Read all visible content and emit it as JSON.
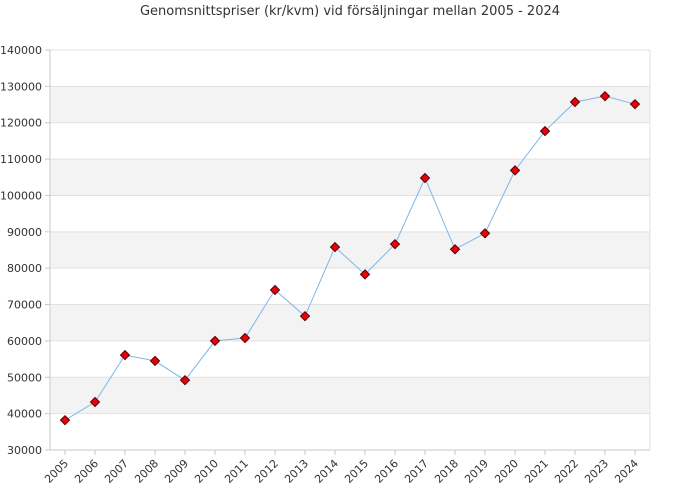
{
  "chart_data": {
    "type": "line",
    "title": "Genomsnittspriser (kr/kvm) vid försäljningar mellan 2005 - 2024",
    "xlabel": "",
    "ylabel": "",
    "categories": [
      "2005",
      "2006",
      "2007",
      "2008",
      "2009",
      "2010",
      "2011",
      "2012",
      "2013",
      "2014",
      "2015",
      "2016",
      "2017",
      "2018",
      "2019",
      "2020",
      "2021",
      "2022",
      "2023",
      "2024"
    ],
    "series": [
      {
        "values": [
          38200,
          43200,
          56100,
          54500,
          49200,
          60000,
          60800,
          74000,
          66800,
          85800,
          78300,
          86600,
          104800,
          85200,
          89600,
          106900,
          117700,
          125700,
          127300,
          125100
        ]
      }
    ],
    "ylim": [
      30000,
      140000
    ],
    "yticks": [
      30000,
      40000,
      50000,
      60000,
      70000,
      80000,
      90000,
      100000,
      110000,
      120000,
      130000,
      140000
    ],
    "grid": true,
    "colors": {
      "line": "#7fb6e6",
      "marker_fill": "#e8000b",
      "marker_stroke": "#5a0000",
      "band": "#f3f3f3",
      "axis": "#c8c8c8",
      "text": "#333333"
    }
  }
}
